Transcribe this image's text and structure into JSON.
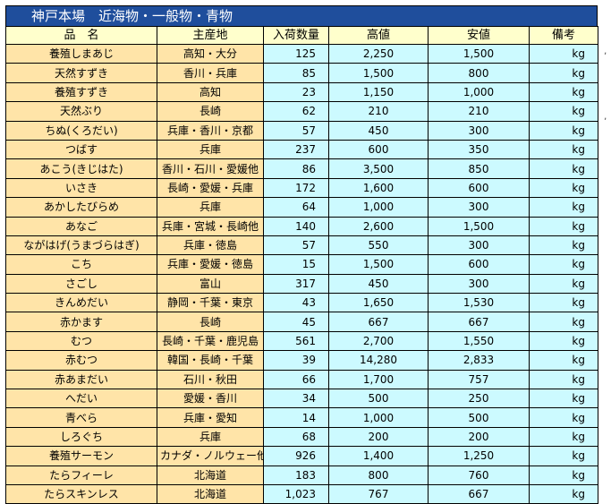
{
  "title": "神戸本場　近海物・一般物・青物",
  "headers": [
    "品　名",
    "主産地",
    "入荷数量",
    "高値",
    "安値",
    "備考"
  ],
  "rows": [
    [
      "養殖しまあじ",
      "高知・大分",
      "125",
      "2,250",
      "1,500",
      "kg"
    ],
    [
      "天然すずき",
      "香川・兵庫",
      "85",
      "1,500",
      "800",
      "kg"
    ],
    [
      "養殖すずき",
      "高知",
      "23",
      "1,150",
      "1,000",
      "kg"
    ],
    [
      "天然ぶり",
      "長崎",
      "62",
      "210",
      "210",
      "kg"
    ],
    [
      "ちぬ(くろだい)",
      "兵庫・香川・京都",
      "57",
      "450",
      "300",
      "kg"
    ],
    [
      "つばす",
      "兵庫",
      "237",
      "600",
      "350",
      "kg"
    ],
    [
      "あこう(きじはた)",
      "香川・石川・愛媛他",
      "86",
      "3,500",
      "850",
      "kg"
    ],
    [
      "いさき",
      "長崎・愛媛・兵庫",
      "172",
      "1,600",
      "600",
      "kg"
    ],
    [
      "あかしたびらめ",
      "兵庫",
      "64",
      "1,000",
      "300",
      "kg"
    ],
    [
      "あなご",
      "兵庫・宮城・長崎他",
      "140",
      "2,600",
      "1,500",
      "kg"
    ],
    [
      "ながはげ(うまづらはぎ)",
      "兵庫・徳島",
      "57",
      "550",
      "300",
      "kg"
    ],
    [
      "こち",
      "兵庫・愛媛・徳島",
      "15",
      "1,500",
      "600",
      "kg"
    ],
    [
      "さごし",
      "富山",
      "317",
      "450",
      "300",
      "kg"
    ],
    [
      "きんめだい",
      "静岡・千葉・東京",
      "43",
      "1,650",
      "1,530",
      "kg"
    ],
    [
      "赤かます",
      "長崎",
      "45",
      "667",
      "667",
      "kg"
    ],
    [
      "むつ",
      "長崎・千葉・鹿児島",
      "561",
      "2,700",
      "1,550",
      "kg"
    ],
    [
      "赤むつ",
      "韓国・長崎・千葉",
      "39",
      "14,280",
      "2,833",
      "kg"
    ],
    [
      "赤あまだい",
      "石川・秋田",
      "66",
      "1,700",
      "757",
      "kg"
    ],
    [
      "へだい",
      "愛媛・香川",
      "34",
      "500",
      "250",
      "kg"
    ],
    [
      "青べら",
      "兵庫・愛知",
      "14",
      "1,000",
      "500",
      "kg"
    ],
    [
      "しろぐち",
      "兵庫",
      "68",
      "200",
      "200",
      "kg"
    ],
    [
      "養殖サーモン",
      "カナダ・ノルウェー他",
      "926",
      "1,400",
      "1,250",
      "kg"
    ],
    [
      "たらフィーレ",
      "北海道",
      "183",
      "800",
      "760",
      "kg"
    ],
    [
      "たらスキンレス",
      "北海道",
      "1,023",
      "767",
      "667",
      "kg"
    ]
  ],
  "colors": {
    "title_bg": "#1f4e9c",
    "header_bg": "#ffffcc",
    "name_bg": "#ffe4a8",
    "value_bg": "#ccfaff"
  }
}
